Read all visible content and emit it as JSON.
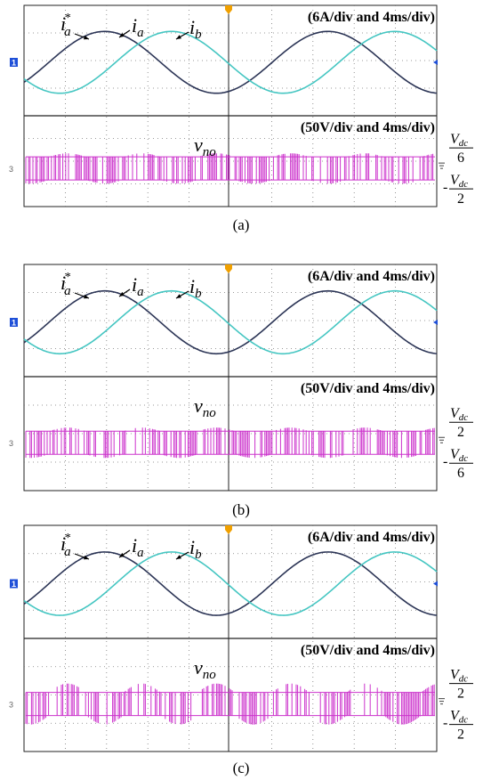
{
  "colors": {
    "current_a": "#2c3556",
    "current_b": "#45c6c2",
    "voltage": "#cc33cc",
    "grid": "#7a7a7a",
    "cursor_marker": "#f0a000",
    "channel_marker": "#1e4fd8"
  },
  "panels": [
    {
      "caption": "(a)",
      "current_scale": "(6A/div and 4ms/div)",
      "voltage_scale": "(50V/div and 4ms/div)",
      "labels": {
        "ia_ref_base": "i",
        "ia_ref_sub": "a",
        "ia_ref_sup": "*",
        "ia_base": "i",
        "ia_sub": "a",
        "ib_base": "i",
        "ib_sub": "b",
        "vno_base": "v",
        "vno_sub": "no"
      },
      "side_upper": {
        "sign": "",
        "num_base": "V",
        "num_sub": "dc",
        "den": "6"
      },
      "side_lower": {
        "sign": "-",
        "num_base": "V",
        "num_sub": "dc",
        "den": "2"
      },
      "channel_marker": "1",
      "channel3_marker": "3"
    },
    {
      "caption": "(b)",
      "current_scale": "(6A/div and 4ms/div)",
      "voltage_scale": "(50V/div and 4ms/div)",
      "labels": {
        "ia_ref_base": "i",
        "ia_ref_sub": "a",
        "ia_ref_sup": "*",
        "ia_base": "i",
        "ia_sub": "a",
        "ib_base": "i",
        "ib_sub": "b",
        "vno_base": "v",
        "vno_sub": "no"
      },
      "side_upper": {
        "sign": "",
        "num_base": "V",
        "num_sub": "dc",
        "den": "2"
      },
      "side_lower": {
        "sign": "-",
        "num_base": "V",
        "num_sub": "dc",
        "den": "6"
      },
      "channel_marker": "1",
      "channel3_marker": "3"
    },
    {
      "caption": "(c)",
      "current_scale": "(6A/div and 4ms/div)",
      "voltage_scale": "(50V/div and 4ms/div)",
      "labels": {
        "ia_ref_base": "i",
        "ia_ref_sub": "a",
        "ia_ref_sup": "*",
        "ia_base": "i",
        "ia_sub": "a",
        "ib_base": "i",
        "ib_sub": "b",
        "vno_base": "v",
        "vno_sub": "no"
      },
      "side_upper": {
        "sign": "",
        "num_base": "V",
        "num_sub": "dc",
        "den": "2"
      },
      "side_lower": {
        "sign": "-",
        "num_base": "V",
        "num_sub": "dc",
        "den": "2"
      },
      "channel_marker": "1",
      "channel3_marker": "3"
    }
  ]
}
